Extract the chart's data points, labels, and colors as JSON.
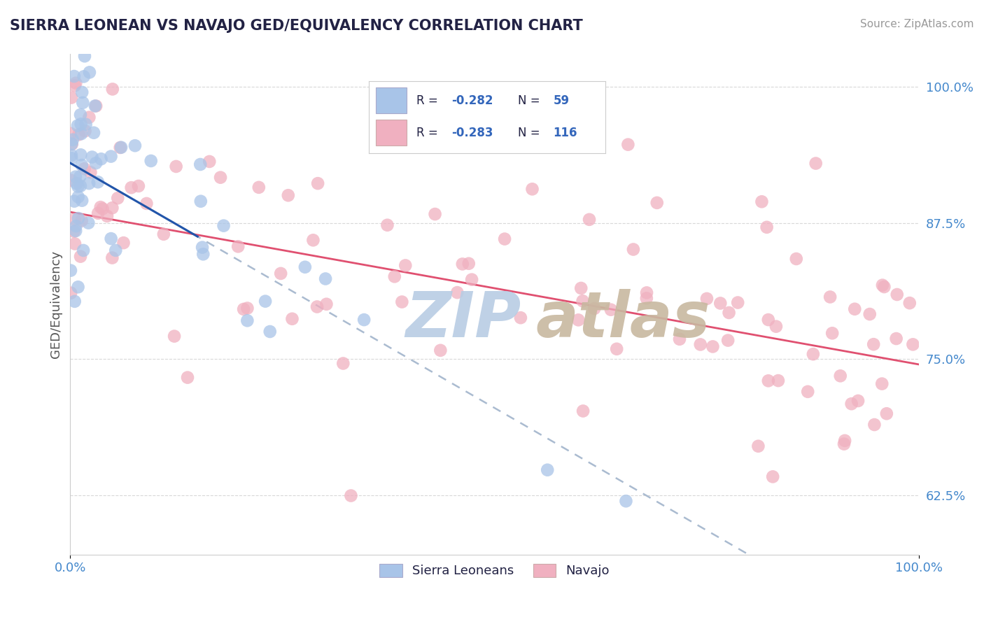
{
  "title": "SIERRA LEONEAN VS NAVAJO GED/EQUIVALENCY CORRELATION CHART",
  "source": "Source: ZipAtlas.com",
  "ylabel": "GED/Equivalency",
  "legend_blue_label": "Sierra Leoneans",
  "legend_pink_label": "Navajo",
  "blue_color": "#a8c4e8",
  "pink_color": "#f0b0c0",
  "blue_line_color": "#2255aa",
  "pink_line_color": "#e05070",
  "blue_dash_color": "#aabbd0",
  "title_color": "#222244",
  "source_color": "#999999",
  "grid_color": "#d8d8d8",
  "watermark_zip_color": "#b8cce4",
  "watermark_atlas_color": "#c8b8a0",
  "xmin": 0.0,
  "xmax": 100.0,
  "ymin": 57.0,
  "ymax": 103.0,
  "yticks": [
    62.5,
    75.0,
    87.5,
    100.0
  ],
  "ytick_labels": [
    "62.5%",
    "75.0%",
    "87.5%",
    "100.0%"
  ],
  "xtick_labels": [
    "0.0%",
    "100.0%"
  ],
  "legend_r_blue": "-0.282",
  "legend_n_blue": "59",
  "legend_r_pink": "-0.283",
  "legend_n_pink": "116"
}
